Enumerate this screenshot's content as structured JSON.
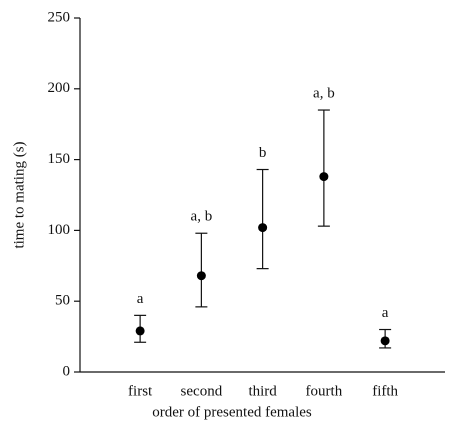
{
  "chart_data": {
    "type": "errorbar",
    "categories": [
      "first",
      "second",
      "third",
      "fourth",
      "fifth"
    ],
    "values": [
      29,
      68,
      102,
      138,
      22
    ],
    "lower": [
      21,
      46,
      73,
      103,
      17
    ],
    "upper": [
      40,
      98,
      143,
      185,
      30
    ],
    "annotations": [
      "a",
      "a, b",
      "b",
      "a, b",
      "a"
    ],
    "color": "#000000",
    "xlabel": "order of presented females",
    "ylabel": "time to mating (s)",
    "ylim": [
      0,
      250
    ],
    "yticks": [
      0,
      50,
      100,
      150,
      200,
      250
    ]
  }
}
